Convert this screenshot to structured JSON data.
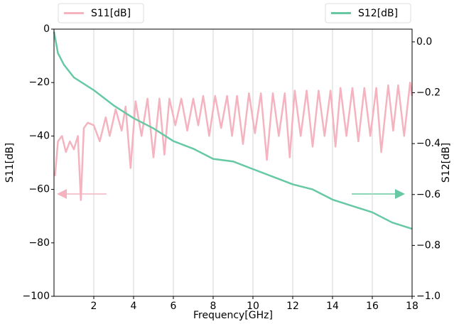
{
  "chart_data": {
    "type": "line",
    "xlabel": "Frequency[GHz]",
    "ylabel": "S11[dB]",
    "y2label": "S12[dB]",
    "xlim": [
      0,
      18
    ],
    "xticks": [
      2,
      4,
      6,
      8,
      10,
      12,
      14,
      16,
      18
    ],
    "ylim": [
      -100,
      0
    ],
    "yticks": [
      {
        "value": -100,
        "label": "−100"
      },
      {
        "value": -80,
        "label": "−80"
      },
      {
        "value": -60,
        "label": "−60"
      },
      {
        "value": -40,
        "label": "−40"
      },
      {
        "value": -20,
        "label": "−20"
      },
      0
    ],
    "y2lim": [
      -1.0,
      0.05
    ],
    "y2ticks": [
      {
        "value": -1.0,
        "label": "−1.0"
      },
      {
        "value": -0.8,
        "label": "−0.8"
      },
      {
        "value": -0.6,
        "label": "−0.6"
      },
      {
        "value": -0.4,
        "label": "−0.4"
      },
      {
        "value": -0.2,
        "label": "−0.2"
      },
      {
        "value": 0.0,
        "label": "0.0"
      }
    ],
    "grid": "x",
    "series": [
      {
        "name": "S11[dB]",
        "color": "#f5b3c0",
        "axis": "y",
        "legend": "upper left",
        "x": [
          0.05,
          0.2,
          0.4,
          0.6,
          0.8,
          1.0,
          1.2,
          1.35,
          1.5,
          1.7,
          2.0,
          2.3,
          2.6,
          2.8,
          3.1,
          3.4,
          3.6,
          3.85,
          4.1,
          4.4,
          4.7,
          5.0,
          5.3,
          5.55,
          5.8,
          6.1,
          6.4,
          6.7,
          7.0,
          7.25,
          7.5,
          7.8,
          8.1,
          8.4,
          8.7,
          8.95,
          9.2,
          9.5,
          9.8,
          10.1,
          10.4,
          10.7,
          11.0,
          11.3,
          11.6,
          11.85,
          12.1,
          12.4,
          12.7,
          13.0,
          13.3,
          13.6,
          13.9,
          14.15,
          14.4,
          14.7,
          15.0,
          15.3,
          15.6,
          15.9,
          16.2,
          16.45,
          16.8,
          17.05,
          17.3,
          17.6,
          17.9,
          18.0
        ],
        "values": [
          -55,
          -42,
          -40,
          -46,
          -42,
          -45,
          -40,
          -64,
          -37,
          -35,
          -36,
          -42,
          -33,
          -40,
          -30,
          -38,
          -29,
          -52,
          -27,
          -40,
          -26,
          -48,
          -26,
          -47,
          -26,
          -36,
          -26,
          -38,
          -26,
          -36,
          -25,
          -40,
          -25,
          -37,
          -25,
          -40,
          -25,
          -43,
          -24,
          -39,
          -24,
          -49,
          -24,
          -40,
          -24,
          -48,
          -23,
          -40,
          -23,
          -44,
          -23,
          -40,
          -23,
          -44,
          -22,
          -40,
          -22,
          -42,
          -22,
          -40,
          -22,
          -46,
          -21,
          -38,
          -21,
          -40,
          -20,
          -25
        ]
      },
      {
        "name": "S12[dB]",
        "color": "#66c9a4",
        "axis": "y2",
        "legend": "upper right",
        "x": [
          0,
          0.2,
          0.5,
          1,
          2,
          3,
          4,
          5,
          6,
          7,
          8,
          9,
          10,
          11,
          12,
          13,
          14,
          15,
          16,
          17,
          18
        ],
        "values": [
          0.04,
          -0.045,
          -0.09,
          -0.14,
          -0.19,
          -0.25,
          -0.3,
          -0.34,
          -0.39,
          -0.42,
          -0.46,
          -0.47,
          -0.5,
          -0.53,
          -0.56,
          -0.58,
          -0.62,
          -0.645,
          -0.67,
          -0.71,
          -0.735
        ]
      }
    ]
  }
}
